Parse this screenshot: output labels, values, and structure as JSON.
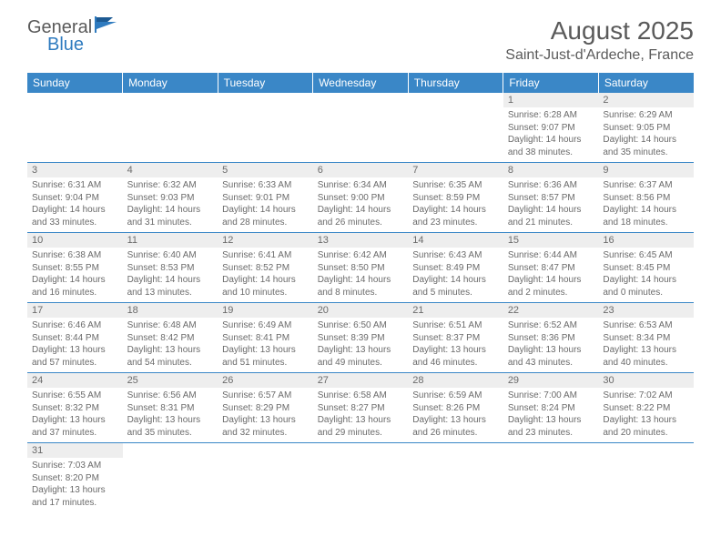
{
  "logo": {
    "text1": "General",
    "text2": "Blue"
  },
  "title": "August 2025",
  "location": "Saint-Just-d'Ardeche, France",
  "colors": {
    "header_bg": "#3a87c7",
    "header_text": "#ffffff",
    "daynum_bg": "#eeeeee",
    "text": "#5a5a5a",
    "cell_border": "#3a87c7",
    "logo_blue": "#2f7bbf"
  },
  "weekdays": [
    "Sunday",
    "Monday",
    "Tuesday",
    "Wednesday",
    "Thursday",
    "Friday",
    "Saturday"
  ],
  "weeks": [
    [
      null,
      null,
      null,
      null,
      null,
      {
        "n": "1",
        "sr": "6:28 AM",
        "ss": "9:07 PM",
        "dl": "14 hours and 38 minutes."
      },
      {
        "n": "2",
        "sr": "6:29 AM",
        "ss": "9:05 PM",
        "dl": "14 hours and 35 minutes."
      }
    ],
    [
      {
        "n": "3",
        "sr": "6:31 AM",
        "ss": "9:04 PM",
        "dl": "14 hours and 33 minutes."
      },
      {
        "n": "4",
        "sr": "6:32 AM",
        "ss": "9:03 PM",
        "dl": "14 hours and 31 minutes."
      },
      {
        "n": "5",
        "sr": "6:33 AM",
        "ss": "9:01 PM",
        "dl": "14 hours and 28 minutes."
      },
      {
        "n": "6",
        "sr": "6:34 AM",
        "ss": "9:00 PM",
        "dl": "14 hours and 26 minutes."
      },
      {
        "n": "7",
        "sr": "6:35 AM",
        "ss": "8:59 PM",
        "dl": "14 hours and 23 minutes."
      },
      {
        "n": "8",
        "sr": "6:36 AM",
        "ss": "8:57 PM",
        "dl": "14 hours and 21 minutes."
      },
      {
        "n": "9",
        "sr": "6:37 AM",
        "ss": "8:56 PM",
        "dl": "14 hours and 18 minutes."
      }
    ],
    [
      {
        "n": "10",
        "sr": "6:38 AM",
        "ss": "8:55 PM",
        "dl": "14 hours and 16 minutes."
      },
      {
        "n": "11",
        "sr": "6:40 AM",
        "ss": "8:53 PM",
        "dl": "14 hours and 13 minutes."
      },
      {
        "n": "12",
        "sr": "6:41 AM",
        "ss": "8:52 PM",
        "dl": "14 hours and 10 minutes."
      },
      {
        "n": "13",
        "sr": "6:42 AM",
        "ss": "8:50 PM",
        "dl": "14 hours and 8 minutes."
      },
      {
        "n": "14",
        "sr": "6:43 AM",
        "ss": "8:49 PM",
        "dl": "14 hours and 5 minutes."
      },
      {
        "n": "15",
        "sr": "6:44 AM",
        "ss": "8:47 PM",
        "dl": "14 hours and 2 minutes."
      },
      {
        "n": "16",
        "sr": "6:45 AM",
        "ss": "8:45 PM",
        "dl": "14 hours and 0 minutes."
      }
    ],
    [
      {
        "n": "17",
        "sr": "6:46 AM",
        "ss": "8:44 PM",
        "dl": "13 hours and 57 minutes."
      },
      {
        "n": "18",
        "sr": "6:48 AM",
        "ss": "8:42 PM",
        "dl": "13 hours and 54 minutes."
      },
      {
        "n": "19",
        "sr": "6:49 AM",
        "ss": "8:41 PM",
        "dl": "13 hours and 51 minutes."
      },
      {
        "n": "20",
        "sr": "6:50 AM",
        "ss": "8:39 PM",
        "dl": "13 hours and 49 minutes."
      },
      {
        "n": "21",
        "sr": "6:51 AM",
        "ss": "8:37 PM",
        "dl": "13 hours and 46 minutes."
      },
      {
        "n": "22",
        "sr": "6:52 AM",
        "ss": "8:36 PM",
        "dl": "13 hours and 43 minutes."
      },
      {
        "n": "23",
        "sr": "6:53 AM",
        "ss": "8:34 PM",
        "dl": "13 hours and 40 minutes."
      }
    ],
    [
      {
        "n": "24",
        "sr": "6:55 AM",
        "ss": "8:32 PM",
        "dl": "13 hours and 37 minutes."
      },
      {
        "n": "25",
        "sr": "6:56 AM",
        "ss": "8:31 PM",
        "dl": "13 hours and 35 minutes."
      },
      {
        "n": "26",
        "sr": "6:57 AM",
        "ss": "8:29 PM",
        "dl": "13 hours and 32 minutes."
      },
      {
        "n": "27",
        "sr": "6:58 AM",
        "ss": "8:27 PM",
        "dl": "13 hours and 29 minutes."
      },
      {
        "n": "28",
        "sr": "6:59 AM",
        "ss": "8:26 PM",
        "dl": "13 hours and 26 minutes."
      },
      {
        "n": "29",
        "sr": "7:00 AM",
        "ss": "8:24 PM",
        "dl": "13 hours and 23 minutes."
      },
      {
        "n": "30",
        "sr": "7:02 AM",
        "ss": "8:22 PM",
        "dl": "13 hours and 20 minutes."
      }
    ],
    [
      {
        "n": "31",
        "sr": "7:03 AM",
        "ss": "8:20 PM",
        "dl": "13 hours and 17 minutes."
      },
      null,
      null,
      null,
      null,
      null,
      null
    ]
  ],
  "labels": {
    "sunrise": "Sunrise:",
    "sunset": "Sunset:",
    "daylight": "Daylight:"
  }
}
